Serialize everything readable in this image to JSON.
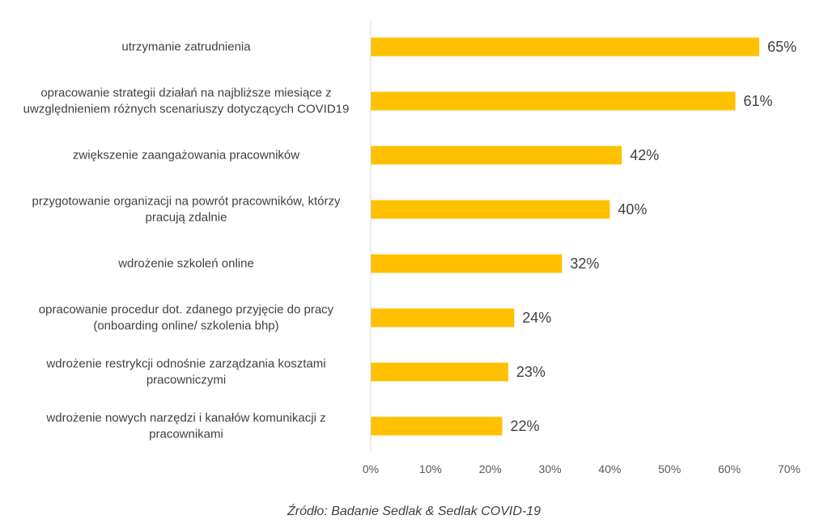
{
  "chart_data": {
    "type": "bar",
    "orientation": "horizontal",
    "categories": [
      [
        "utrzymanie zatrudnienia"
      ],
      [
        "opracowanie strategii działań na najbliższe miesiące z",
        "uwzględnieniem różnych scenariuszy dotyczących COVID19"
      ],
      [
        "zwiększenie zaangażowania pracowników"
      ],
      [
        "przygotowanie organizacji na powrót pracowników, którzy",
        "pracują zdalnie"
      ],
      [
        "wdrożenie szkoleń online"
      ],
      [
        "opracowanie procedur dot. zdanego przyjęcie do pracy",
        "(onboarding online/ szkolenia bhp)"
      ],
      [
        "wdrożenie restrykcji odnośnie zarządzania kosztami",
        "pracowniczymi"
      ],
      [
        "wdrożenie nowych narzędzi i kanałów  komunikacji z",
        "pracownikami"
      ]
    ],
    "values": [
      65,
      61,
      42,
      40,
      32,
      24,
      23,
      22
    ],
    "value_labels": [
      "65%",
      "61%",
      "42%",
      "40%",
      "32%",
      "24%",
      "23%",
      "22%"
    ],
    "xlim": [
      0,
      70
    ],
    "xticks": [
      0,
      10,
      20,
      30,
      40,
      50,
      60,
      70
    ],
    "xtick_labels": [
      "0%",
      "10%",
      "20%",
      "30%",
      "40%",
      "50%",
      "60%",
      "70%"
    ],
    "grid": false,
    "bar_color": "#FFC000"
  },
  "source": "Źródło: Badanie Sedlak & Sedlak COVID-19"
}
